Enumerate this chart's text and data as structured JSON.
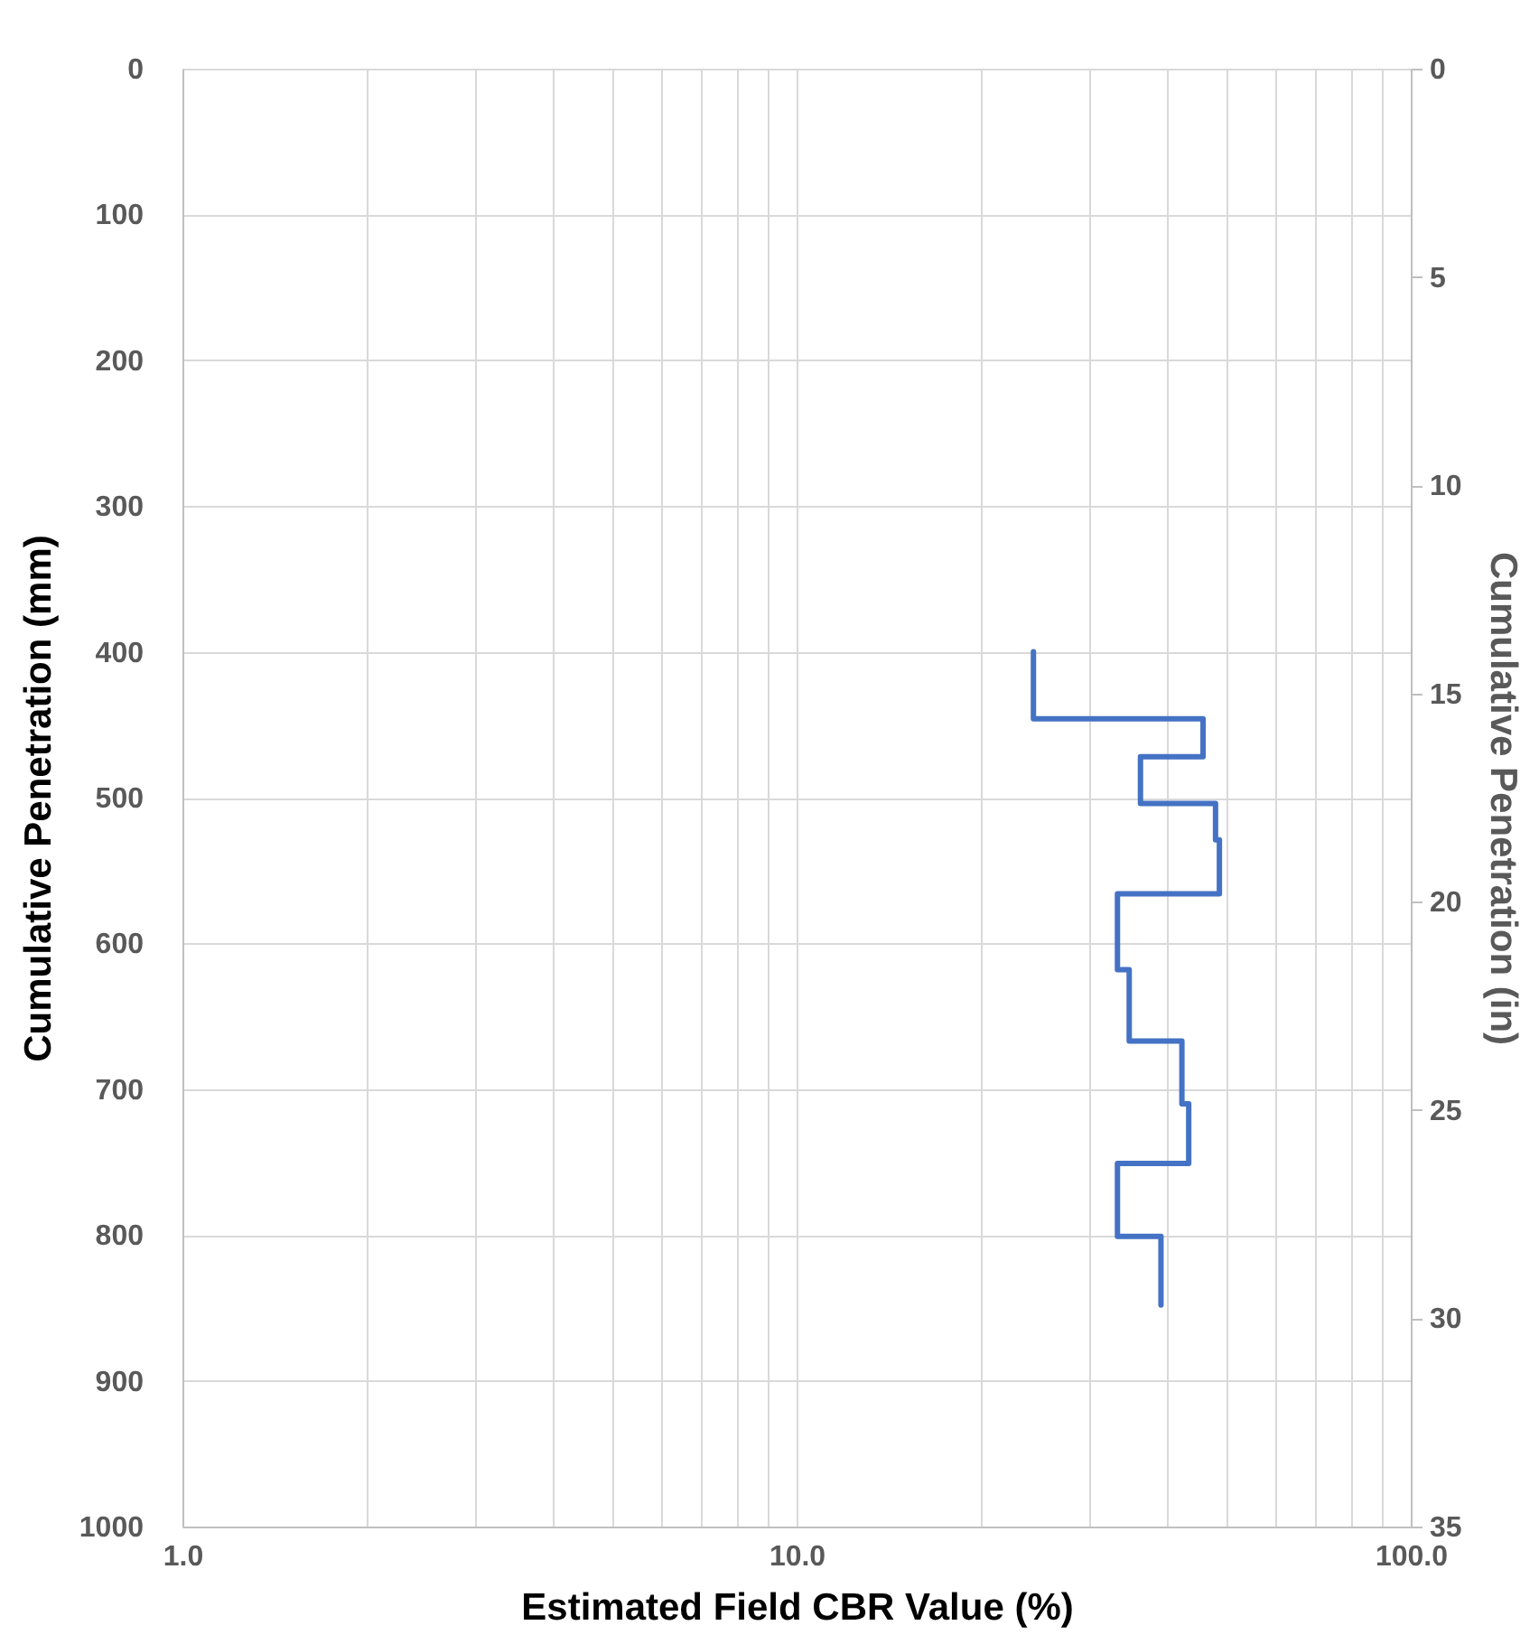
{
  "chart_data": {
    "type": "line",
    "xlabel": "Estimated Field CBR Value (%)",
    "ylabel": "Cumulative Penetration (mm)",
    "y2label": "Cumulative Penetration (in)",
    "log": "x",
    "grid": true,
    "line_style": "solid",
    "marker": "none",
    "xlim": [
      1,
      100
    ],
    "xticks": [
      {
        "value": 1,
        "label": "1.0"
      },
      {
        "value": 2,
        "label": null
      },
      {
        "value": 3,
        "label": null
      },
      {
        "value": 4,
        "label": null
      },
      {
        "value": 5,
        "label": null
      },
      {
        "value": 6,
        "label": null
      },
      {
        "value": 7,
        "label": null
      },
      {
        "value": 8,
        "label": null
      },
      {
        "value": 9,
        "label": null
      },
      {
        "value": 10,
        "label": "10.0"
      },
      {
        "value": 20,
        "label": null
      },
      {
        "value": 30,
        "label": null
      },
      {
        "value": 40,
        "label": null
      },
      {
        "value": 50,
        "label": null
      },
      {
        "value": 60,
        "label": null
      },
      {
        "value": 70,
        "label": null
      },
      {
        "value": 80,
        "label": null
      },
      {
        "value": 90,
        "label": null
      },
      {
        "value": 100,
        "label": "100.0"
      }
    ],
    "ylim": [
      1000,
      0
    ],
    "yticks": [
      0,
      100,
      200,
      300,
      400,
      500,
      600,
      700,
      800,
      900,
      1000
    ],
    "y2lim": [
      35,
      0
    ],
    "y2ticks": [
      0,
      5,
      10,
      15,
      20,
      25,
      30,
      35
    ],
    "series": [
      {
        "color": "#4472c4",
        "x": [
          24.3,
          24.3,
          45.9,
          45.9,
          36.3,
          36.3,
          48.1,
          48.1,
          48.8,
          48.8,
          33.3,
          33.3,
          34.8,
          34.8,
          42.4,
          42.4,
          43.5,
          43.5,
          33.3,
          33.3,
          39.2,
          39.2
        ],
        "values": [
          400,
          446,
          446,
          472,
          472,
          504,
          504,
          529,
          529,
          566,
          566,
          618,
          618,
          667,
          667,
          710,
          710,
          751,
          751,
          801,
          801,
          848
        ]
      }
    ]
  }
}
